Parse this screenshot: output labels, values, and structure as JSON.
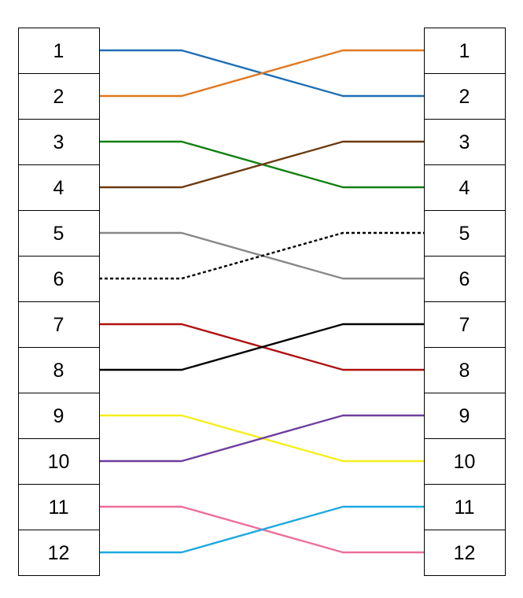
{
  "left_column": {
    "labels": [
      "1",
      "2",
      "3",
      "4",
      "5",
      "6",
      "7",
      "8",
      "9",
      "10",
      "11",
      "12"
    ]
  },
  "right_column": {
    "labels": [
      "1",
      "2",
      "3",
      "4",
      "5",
      "6",
      "7",
      "8",
      "9",
      "10",
      "11",
      "12"
    ]
  },
  "wires": [
    {
      "from": 1,
      "to": 2,
      "color": "#1f6fb4",
      "style": "solid"
    },
    {
      "from": 2,
      "to": 1,
      "color": "#e07820",
      "style": "solid"
    },
    {
      "from": 3,
      "to": 4,
      "color": "#118011",
      "style": "solid"
    },
    {
      "from": 4,
      "to": 3,
      "color": "#6b3a10",
      "style": "solid"
    },
    {
      "from": 5,
      "to": 6,
      "color": "#888888",
      "style": "solid"
    },
    {
      "from": 6,
      "to": 5,
      "color": "#000000",
      "style": "dashed"
    },
    {
      "from": 7,
      "to": 8,
      "color": "#b01010",
      "style": "solid"
    },
    {
      "from": 8,
      "to": 7,
      "color": "#000000",
      "style": "solid"
    },
    {
      "from": 9,
      "to": 10,
      "color": "#f5ef1a",
      "style": "solid"
    },
    {
      "from": 10,
      "to": 9,
      "color": "#6e3f9e",
      "style": "solid"
    },
    {
      "from": 11,
      "to": 12,
      "color": "#ee6e9a",
      "style": "solid"
    },
    {
      "from": 12,
      "to": 11,
      "color": "#1ea8e0",
      "style": "solid"
    }
  ]
}
